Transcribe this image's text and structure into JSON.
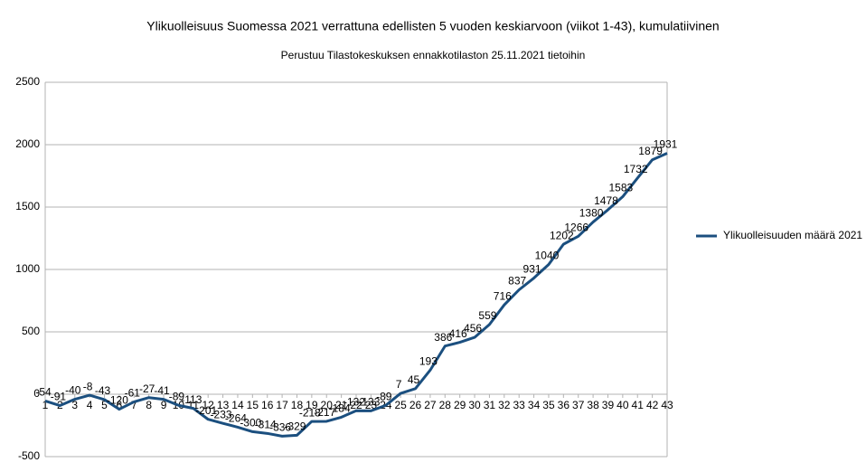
{
  "chart_data": {
    "type": "line",
    "title": "Ylikuolleisuus Suomessa 2021 verrattuna edellisten 5 vuoden keskiarvoon (viikot 1-43), kumulatiivinen",
    "subtitle": "Perustuu Tilastokeskuksen ennakkotilaston 25.11.2021 tietoihin",
    "categories": [
      1,
      2,
      3,
      4,
      5,
      6,
      7,
      8,
      9,
      10,
      11,
      12,
      13,
      14,
      15,
      16,
      17,
      18,
      19,
      20,
      21,
      22,
      23,
      24,
      25,
      26,
      27,
      28,
      29,
      30,
      31,
      32,
      33,
      34,
      35,
      36,
      37,
      38,
      39,
      40,
      41,
      42,
      43
    ],
    "series": [
      {
        "name": "Ylikuolleisuuden määrä 2021",
        "color": "#1b4f7f",
        "values": [
          -54,
          -91,
          -40,
          -8,
          -43,
          -120,
          -61,
          -27,
          -41,
          -89,
          -113,
          -201,
          -233,
          -264,
          -300,
          -314,
          -336,
          -329,
          -218,
          -217,
          -184,
          -132,
          -133,
          -89,
          7,
          45,
          193,
          386,
          416,
          456,
          559,
          716,
          837,
          931,
          1040,
          1202,
          1266,
          1380,
          1478,
          1583,
          1732,
          1879,
          1931
        ]
      }
    ],
    "ylim": [
      -500,
      2500
    ],
    "yticks": [
      -500,
      0,
      500,
      1000,
      1500,
      2000,
      2500
    ],
    "grid": true,
    "legend": "right"
  }
}
